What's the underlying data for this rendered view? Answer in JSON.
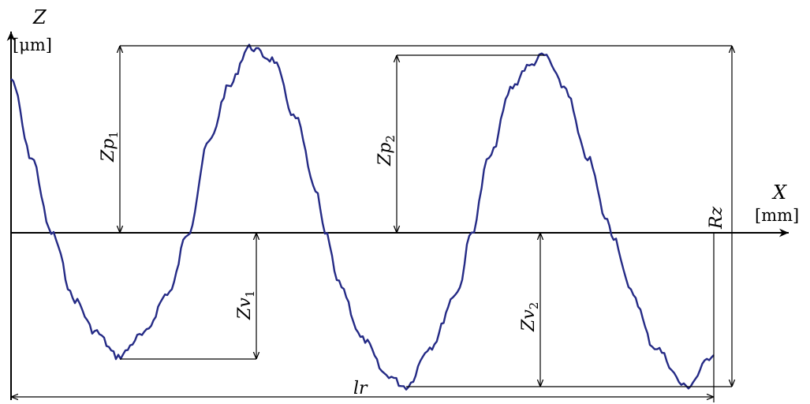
{
  "axes": {
    "y_name": "Z",
    "y_unit": "[μm]",
    "x_name": "X",
    "x_unit": "[mm]"
  },
  "labels": {
    "zp1": "Zp",
    "zp1_sub": "1",
    "zp2": "Zp",
    "zp2_sub": "2",
    "zv1": "Zv",
    "zv1_sub": "1",
    "zv2": "Zv",
    "zv2_sub": "2",
    "rz": "Rz",
    "lr": "lr"
  },
  "colors": {
    "profile": "#252b86",
    "lines": "#000000"
  }
}
